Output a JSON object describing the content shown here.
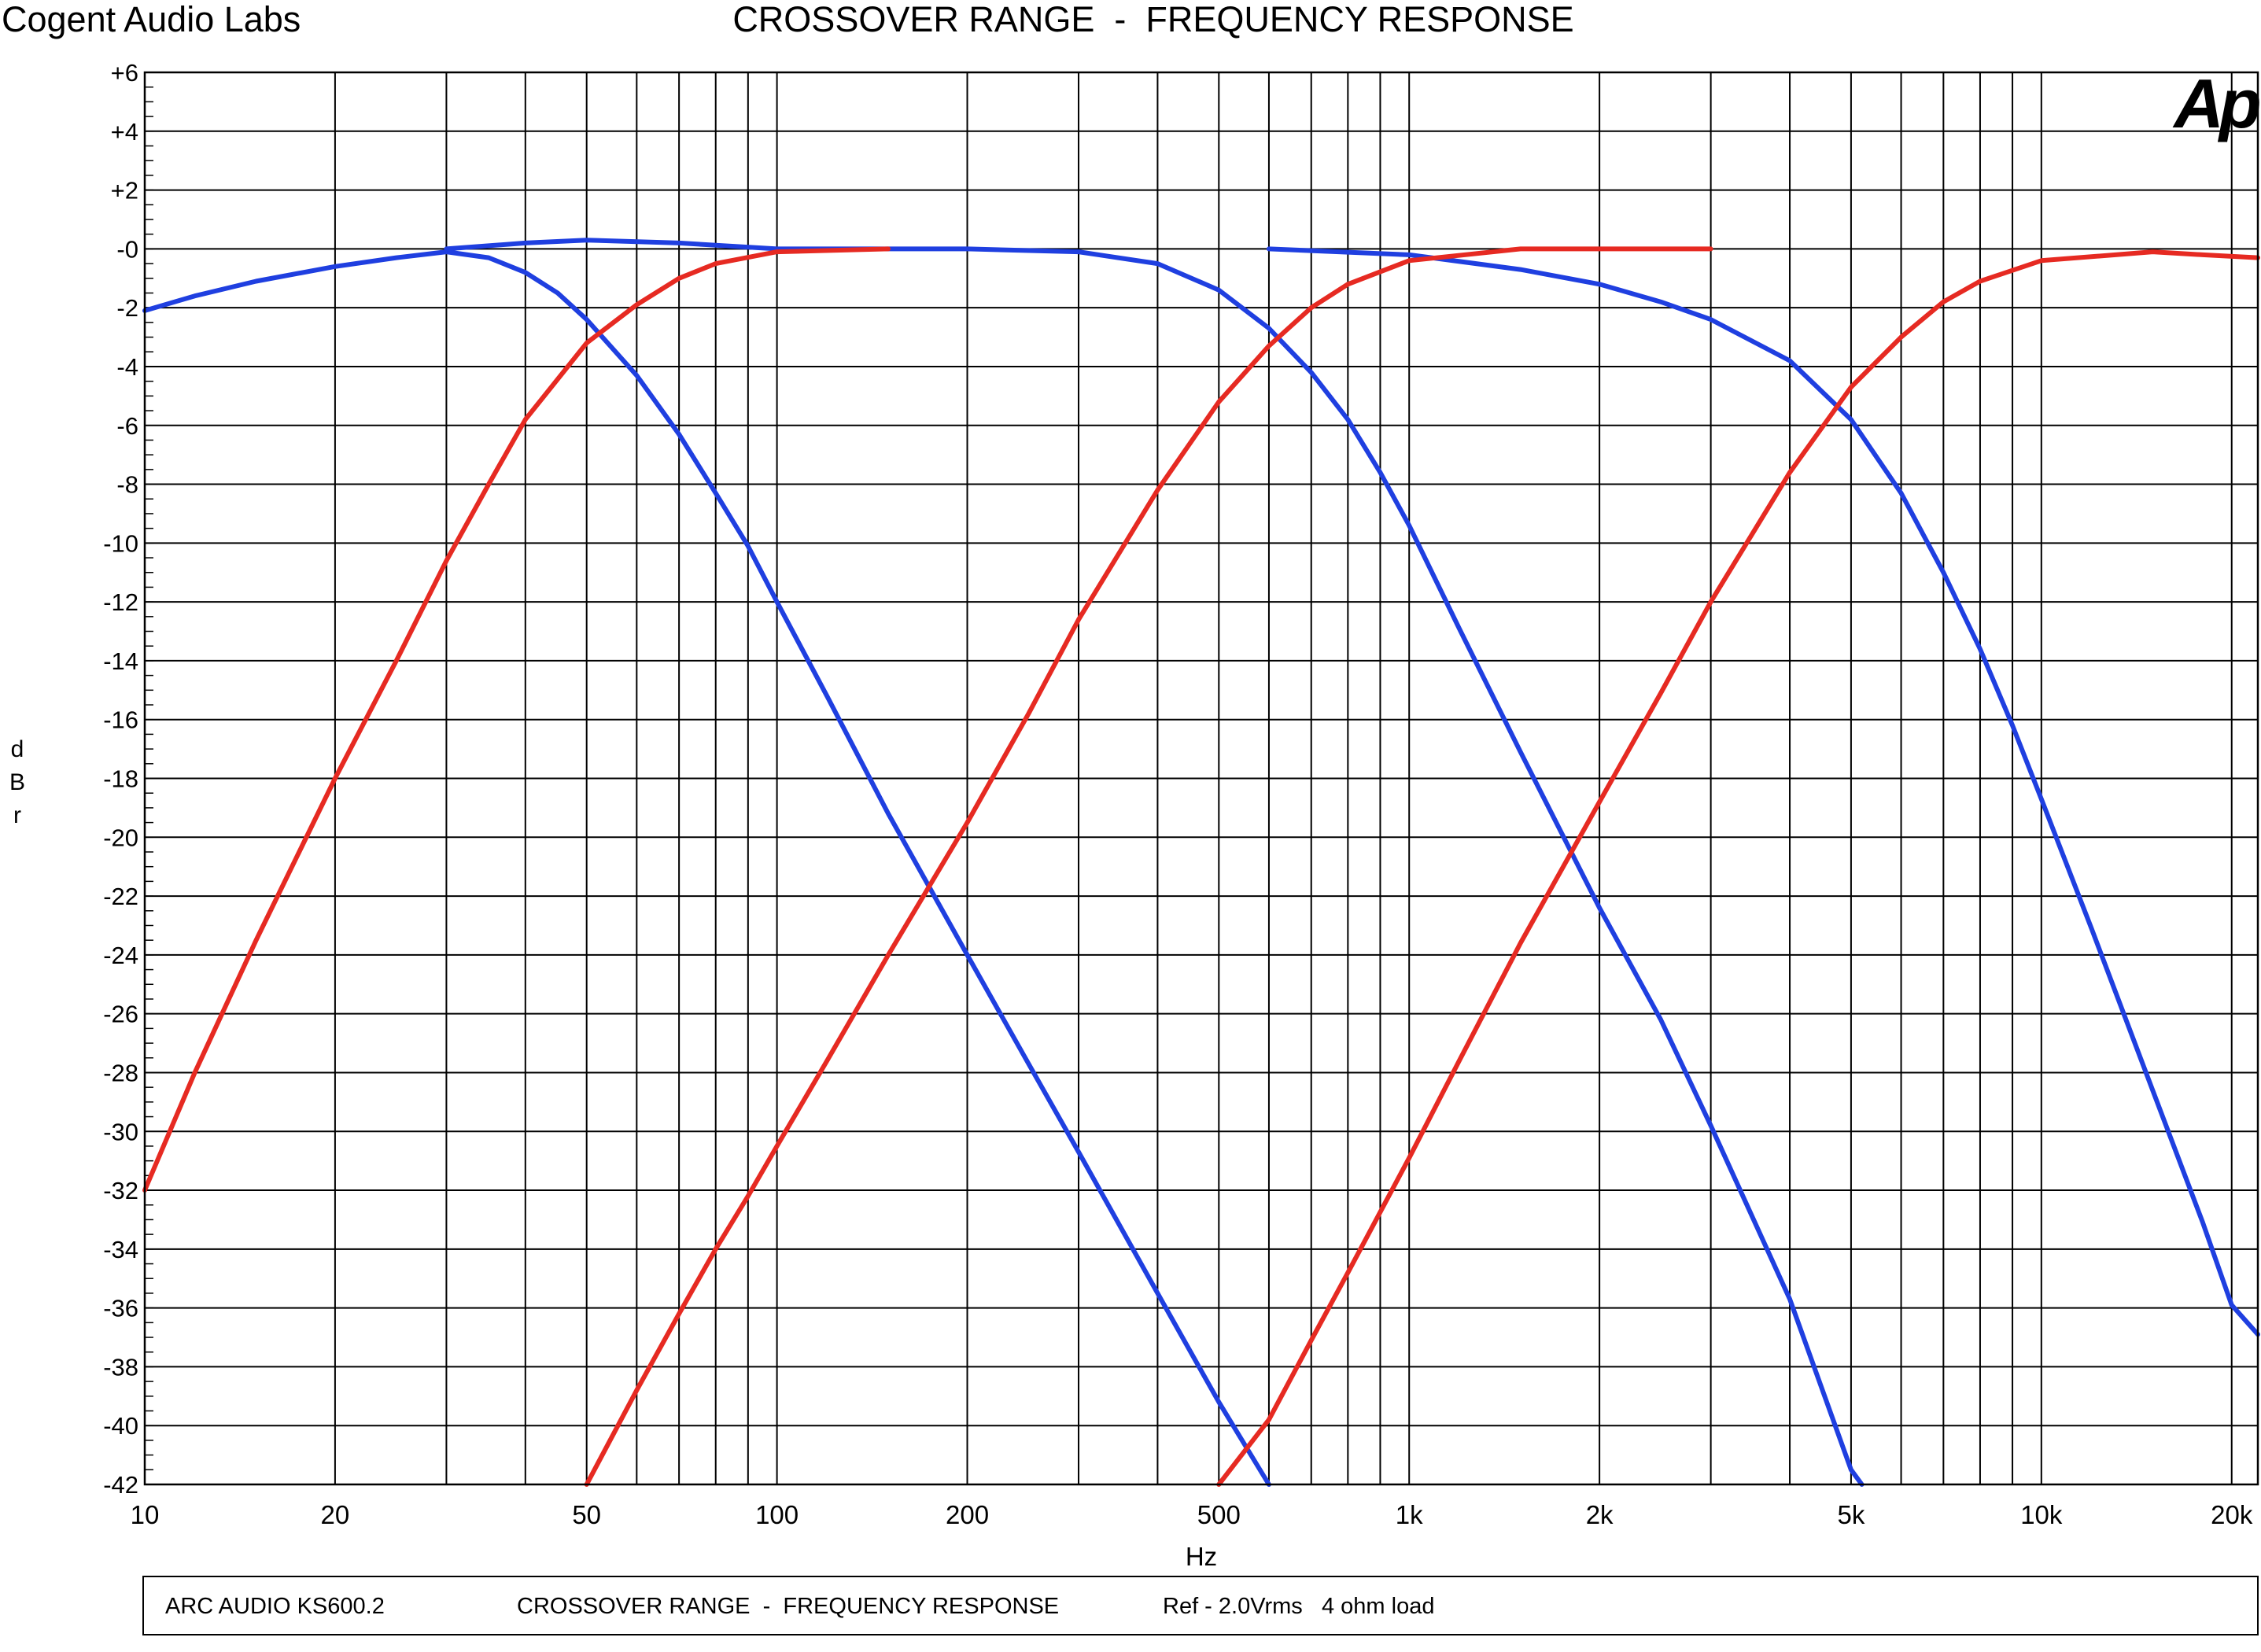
{
  "header": {
    "company": "Cogent Audio Labs",
    "title": "CROSSOVER RANGE  -  FREQUENCY RESPONSE"
  },
  "logo": {
    "text": "Ap",
    "color": "#1f5fd6"
  },
  "footer": {
    "model": "ARC AUDIO KS600.2",
    "description": "CROSSOVER RANGE  -  FREQUENCY RESPONSE",
    "reference": "Ref - 2.0Vrms   4 ohm load"
  },
  "chart_data": {
    "type": "line",
    "title": "CROSSOVER RANGE  -  FREQUENCY RESPONSE",
    "xlabel": "Hz",
    "ylabel": "dBr",
    "xscale": "log",
    "xlim": [
      10,
      22000
    ],
    "ylim": [
      -42,
      6
    ],
    "grid": true,
    "x_ticks": [
      {
        "value": 10,
        "label": "10"
      },
      {
        "value": 20,
        "label": "20"
      },
      {
        "value": 50,
        "label": "50"
      },
      {
        "value": 100,
        "label": "100"
      },
      {
        "value": 200,
        "label": "200"
      },
      {
        "value": 500,
        "label": "500"
      },
      {
        "value": 1000,
        "label": "1k"
      },
      {
        "value": 2000,
        "label": "2k"
      },
      {
        "value": 5000,
        "label": "5k"
      },
      {
        "value": 10000,
        "label": "10k"
      },
      {
        "value": 20000,
        "label": "20k"
      }
    ],
    "y_ticks": [
      {
        "value": 6,
        "label": "+6"
      },
      {
        "value": 4,
        "label": "+4"
      },
      {
        "value": 2,
        "label": "+2"
      },
      {
        "value": 0,
        "label": "-0"
      },
      {
        "value": -2,
        "label": "-2"
      },
      {
        "value": -4,
        "label": "-4"
      },
      {
        "value": -6,
        "label": "-6"
      },
      {
        "value": -8,
        "label": "-8"
      },
      {
        "value": -10,
        "label": "-10"
      },
      {
        "value": -12,
        "label": "-12"
      },
      {
        "value": -14,
        "label": "-14"
      },
      {
        "value": -16,
        "label": "-16"
      },
      {
        "value": -18,
        "label": "-18"
      },
      {
        "value": -20,
        "label": "-20"
      },
      {
        "value": -22,
        "label": "-22"
      },
      {
        "value": -24,
        "label": "-24"
      },
      {
        "value": -26,
        "label": "-26"
      },
      {
        "value": -28,
        "label": "-28"
      },
      {
        "value": -30,
        "label": "-30"
      },
      {
        "value": -32,
        "label": "-32"
      },
      {
        "value": -34,
        "label": "-34"
      },
      {
        "value": -36,
        "label": "-36"
      },
      {
        "value": -38,
        "label": "-38"
      },
      {
        "value": -40,
        "label": "-40"
      },
      {
        "value": -42,
        "label": "-42"
      }
    ],
    "series": [
      {
        "color": "#1f3fe0",
        "points": [
          [
            10,
            -2.1
          ],
          [
            12,
            -1.6
          ],
          [
            15,
            -1.1
          ],
          [
            20,
            -0.6
          ],
          [
            25,
            -0.3
          ],
          [
            30,
            -0.1
          ],
          [
            35,
            -0.3
          ],
          [
            40,
            -0.8
          ],
          [
            45,
            -1.5
          ],
          [
            50,
            -2.4
          ],
          [
            60,
            -4.3
          ],
          [
            70,
            -6.3
          ],
          [
            80,
            -8.3
          ],
          [
            90,
            -10.1
          ],
          [
            100,
            -12.0
          ],
          [
            120,
            -15.2
          ],
          [
            150,
            -19.2
          ],
          [
            200,
            -24.0
          ],
          [
            250,
            -27.7
          ],
          [
            300,
            -30.7
          ],
          [
            400,
            -35.5
          ],
          [
            500,
            -39.2
          ],
          [
            600,
            -42.0
          ]
        ]
      },
      {
        "color": "#1f3fe0",
        "points": [
          [
            30,
            0.0
          ],
          [
            40,
            0.2
          ],
          [
            50,
            0.3
          ],
          [
            70,
            0.2
          ],
          [
            100,
            0.0
          ],
          [
            200,
            0.0
          ],
          [
            300,
            -0.1
          ],
          [
            400,
            -0.5
          ],
          [
            500,
            -1.4
          ],
          [
            600,
            -2.7
          ],
          [
            700,
            -4.2
          ],
          [
            800,
            -5.8
          ],
          [
            900,
            -7.6
          ],
          [
            1000,
            -9.4
          ],
          [
            1200,
            -12.9
          ],
          [
            1500,
            -17.1
          ],
          [
            2000,
            -22.4
          ],
          [
            2500,
            -26.2
          ],
          [
            3000,
            -29.8
          ],
          [
            4000,
            -35.7
          ],
          [
            5000,
            -41.5
          ],
          [
            5200,
            -42.0
          ]
        ]
      },
      {
        "color": "#1f3fe0",
        "points": [
          [
            600,
            0.0
          ],
          [
            1000,
            -0.2
          ],
          [
            1500,
            -0.7
          ],
          [
            2000,
            -1.2
          ],
          [
            2500,
            -1.8
          ],
          [
            3000,
            -2.4
          ],
          [
            4000,
            -3.8
          ],
          [
            5000,
            -5.8
          ],
          [
            6000,
            -8.3
          ],
          [
            7000,
            -11.0
          ],
          [
            8000,
            -13.6
          ],
          [
            9000,
            -16.2
          ],
          [
            10000,
            -18.7
          ],
          [
            12000,
            -23.1
          ],
          [
            15000,
            -28.6
          ],
          [
            18000,
            -33.1
          ],
          [
            20000,
            -35.9
          ],
          [
            22000,
            -36.9
          ]
        ]
      },
      {
        "color": "#e62a22",
        "points": [
          [
            10,
            -32.0
          ],
          [
            12,
            -28.0
          ],
          [
            15,
            -23.5
          ],
          [
            20,
            -18.0
          ],
          [
            25,
            -14.0
          ],
          [
            30,
            -10.6
          ],
          [
            35,
            -8.0
          ],
          [
            40,
            -5.8
          ],
          [
            50,
            -3.2
          ],
          [
            60,
            -1.9
          ],
          [
            70,
            -1.0
          ],
          [
            80,
            -0.5
          ],
          [
            100,
            -0.1
          ],
          [
            150,
            0.0
          ]
        ]
      },
      {
        "color": "#e62a22",
        "points": [
          [
            50,
            -42.0
          ],
          [
            60,
            -38.8
          ],
          [
            70,
            -36.2
          ],
          [
            80,
            -34.0
          ],
          [
            90,
            -32.2
          ],
          [
            100,
            -30.5
          ],
          [
            120,
            -27.6
          ],
          [
            150,
            -24.0
          ],
          [
            200,
            -19.5
          ],
          [
            250,
            -15.8
          ],
          [
            300,
            -12.6
          ],
          [
            400,
            -8.2
          ],
          [
            500,
            -5.2
          ],
          [
            600,
            -3.3
          ],
          [
            700,
            -2.0
          ],
          [
            800,
            -1.2
          ],
          [
            1000,
            -0.4
          ],
          [
            1500,
            0.0
          ],
          [
            3000,
            0.0
          ]
        ]
      },
      {
        "color": "#e62a22",
        "points": [
          [
            500,
            -42.0
          ],
          [
            600,
            -39.8
          ],
          [
            700,
            -37.1
          ],
          [
            800,
            -34.8
          ],
          [
            1000,
            -30.9
          ],
          [
            1200,
            -27.6
          ],
          [
            1500,
            -23.6
          ],
          [
            2000,
            -18.8
          ],
          [
            2500,
            -15.1
          ],
          [
            3000,
            -12.0
          ],
          [
            4000,
            -7.6
          ],
          [
            5000,
            -4.7
          ],
          [
            6000,
            -3.0
          ],
          [
            7000,
            -1.8
          ],
          [
            8000,
            -1.1
          ],
          [
            10000,
            -0.4
          ],
          [
            15000,
            -0.1
          ],
          [
            18000,
            -0.2
          ],
          [
            22000,
            -0.3
          ]
        ]
      }
    ]
  }
}
